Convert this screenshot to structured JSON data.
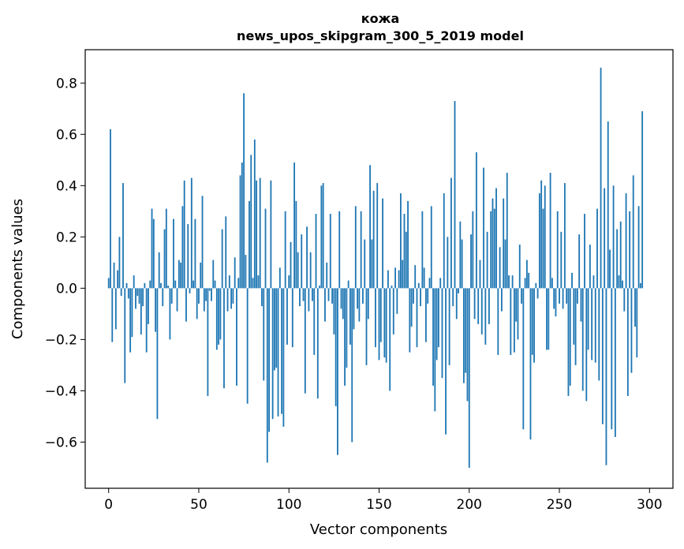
{
  "chart_data": {
    "type": "bar",
    "title": "кожа",
    "subtitle": "news_upos_skipgram_300_5_2019 model",
    "xlabel": "Vector components",
    "ylabel": "Components values",
    "xlim": [
      -13,
      313
    ],
    "ylim": [
      -0.78,
      0.93
    ],
    "xticks": [
      0,
      50,
      100,
      150,
      200,
      250,
      300
    ],
    "xtick_labels": [
      "0",
      "50",
      "100",
      "150",
      "200",
      "250",
      "300"
    ],
    "yticks": [
      -0.6,
      -0.4,
      -0.2,
      0.0,
      0.2,
      0.4,
      0.6,
      0.8
    ],
    "ytick_labels": [
      "−0.6",
      "−0.4",
      "−0.2",
      "0.0",
      "0.2",
      "0.4",
      "0.6",
      "0.8"
    ],
    "color": "#1f77b4",
    "values": [
      0.04,
      0.62,
      -0.21,
      0.1,
      -0.16,
      0.07,
      0.2,
      -0.03,
      0.41,
      -0.37,
      0.02,
      -0.04,
      -0.25,
      -0.19,
      0.05,
      -0.08,
      -0.03,
      -0.06,
      -0.18,
      -0.07,
      0.02,
      -0.25,
      -0.14,
      0.03,
      0.31,
      0.27,
      -0.17,
      -0.51,
      0.14,
      0.02,
      -0.07,
      0.23,
      0.31,
      0.01,
      -0.2,
      -0.06,
      0.27,
      0.03,
      -0.09,
      0.11,
      0.1,
      0.32,
      0.42,
      -0.13,
      0.25,
      -0.02,
      0.43,
      0.03,
      0.27,
      -0.12,
      -0.06,
      0.1,
      0.36,
      -0.09,
      -0.05,
      -0.42,
      -0.01,
      -0.05,
      0.11,
      0.03,
      -0.24,
      -0.22,
      -0.2,
      0.23,
      -0.39,
      0.28,
      -0.09,
      0.05,
      -0.08,
      -0.06,
      0.12,
      -0.38,
      0.04,
      0.44,
      0.49,
      0.76,
      0.13,
      -0.45,
      0.34,
      0.52,
      0.04,
      0.58,
      0.42,
      0.05,
      0.43,
      -0.07,
      -0.36,
      0.31,
      -0.68,
      -0.56,
      0.42,
      -0.51,
      -0.32,
      -0.31,
      -0.5,
      0.08,
      -0.49,
      -0.54,
      0.3,
      -0.22,
      0.05,
      0.18,
      -0.23,
      0.49,
      0.34,
      0.14,
      -0.07,
      0.21,
      -0.05,
      -0.41,
      0.24,
      -0.09,
      0.14,
      -0.05,
      -0.26,
      0.29,
      -0.43,
      0.01,
      0.4,
      0.41,
      -0.13,
      0.1,
      -0.05,
      0.29,
      -0.06,
      -0.18,
      -0.46,
      -0.65,
      0.3,
      -0.08,
      -0.12,
      -0.38,
      -0.31,
      0.03,
      -0.22,
      -0.6,
      -0.16,
      0.32,
      -0.08,
      -0.13,
      0.3,
      -0.06,
      0.19,
      -0.3,
      -0.12,
      0.48,
      0.19,
      0.38,
      -0.23,
      0.41,
      -0.28,
      -0.21,
      0.35,
      -0.27,
      -0.29,
      0.07,
      -0.4,
      0.01,
      -0.18,
      0.08,
      -0.1,
      0.07,
      0.37,
      0.11,
      0.29,
      0.22,
      0.34,
      -0.25,
      -0.15,
      -0.06,
      0.09,
      -0.23,
      0.02,
      -0.07,
      0.3,
      0.08,
      -0.21,
      -0.06,
      0.04,
      0.32,
      -0.38,
      -0.48,
      -0.28,
      -0.23,
      0.04,
      -0.35,
      0.37,
      -0.57,
      0.2,
      -0.3,
      0.43,
      -0.07,
      0.73,
      -0.12,
      -0.02,
      0.26,
      0.19,
      -0.37,
      -0.33,
      -0.44,
      -0.7,
      0.21,
      0.3,
      -0.12,
      0.53,
      -0.14,
      0.11,
      -0.18,
      0.47,
      -0.22,
      0.22,
      -0.14,
      0.3,
      0.35,
      0.31,
      0.39,
      -0.26,
      0.16,
      -0.09,
      0.35,
      0.19,
      0.45,
      0.05,
      -0.26,
      0.05,
      -0.25,
      -0.13,
      -0.2,
      0.17,
      -0.06,
      -0.55,
      0.04,
      0.11,
      0.06,
      -0.59,
      -0.26,
      -0.29,
      0.02,
      -0.04,
      0.37,
      0.42,
      0.31,
      0.4,
      -0.24,
      -0.24,
      0.45,
      0.04,
      -0.08,
      -0.11,
      0.3,
      -0.06,
      0.22,
      -0.08,
      0.41,
      -0.06,
      -0.42,
      -0.38,
      0.06,
      -0.22,
      -0.3,
      -0.06,
      0.21,
      -0.13,
      -0.4,
      0.29,
      -0.44,
      -0.24,
      0.17,
      -0.28,
      0.05,
      -0.29,
      0.31,
      -0.36,
      0.86,
      -0.53,
      0.39,
      -0.69,
      0.65,
      0.15,
      -0.55,
      0.4,
      -0.58,
      0.23,
      0.05,
      0.26,
      0.03,
      -0.09,
      0.37,
      -0.42,
      0.3,
      -0.33,
      0.44,
      -0.15,
      -0.27,
      0.32,
      0.02,
      0.69
    ]
  }
}
